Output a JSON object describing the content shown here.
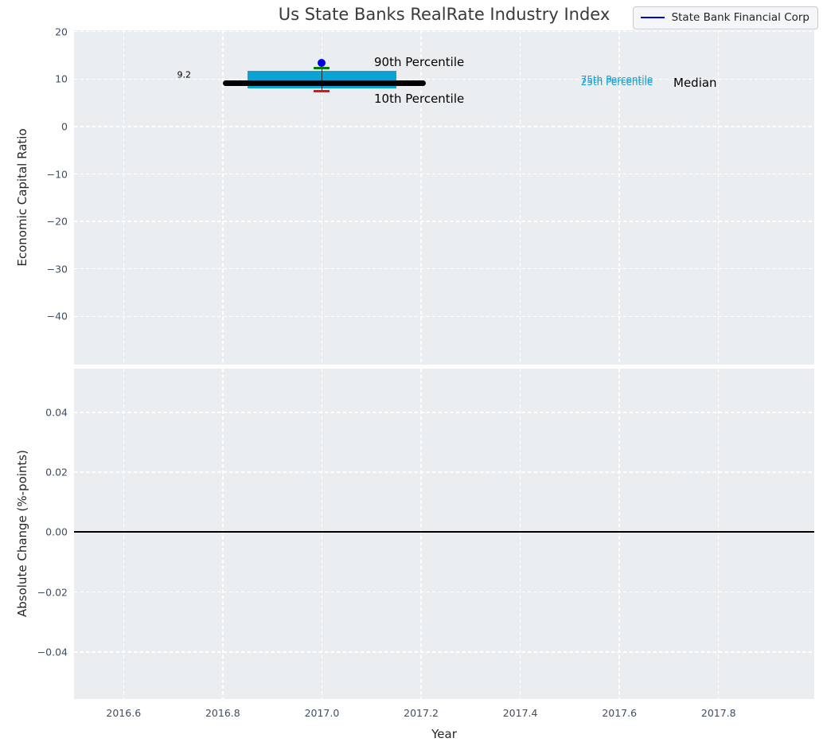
{
  "title": "Us State Banks RealRate Industry Index",
  "style": {
    "figure_background": "#ffffff",
    "axes_background": "#ebeef0",
    "grid_color": "#ffffff",
    "tick_label_color": "#3f4e63",
    "axis_label_color": "#262626",
    "title_color": "#3a3a3a"
  },
  "legend": {
    "label": "State Bank Financial Corp",
    "line_color": "#0000ee"
  },
  "chart_data": [
    {
      "type": "box-errorbar",
      "title": "Us State Banks RealRate Industry Index",
      "xlabel": "",
      "ylabel": "Economic Capital Ratio",
      "xlim": [
        2016.5,
        2017.993
      ],
      "ylim": [
        -50.2,
        20.3
      ],
      "grid": true,
      "legend_position": "upper right",
      "xticks": {
        "values": [
          2016.6,
          2016.8,
          2017.0,
          2017.2,
          2017.4,
          2017.6,
          2017.8
        ],
        "labels": []
      },
      "yticks": {
        "values": [
          20,
          10,
          0,
          -10,
          -20,
          -30,
          -40
        ],
        "labels": [
          "20",
          "10",
          "0",
          "−10",
          "−20",
          "−30",
          "−40"
        ]
      },
      "median": {
        "value": 9.2,
        "x_span": [
          2016.8,
          2017.21
        ],
        "color": "#000000"
      },
      "iqr_box": {
        "p25": 8.0,
        "p75": 11.7,
        "x_span": [
          2016.85,
          2017.15
        ],
        "color": "#0ba2d4"
      },
      "whiskers": {
        "x": 2017.0,
        "p90": 12.4,
        "p10": 7.5,
        "cap_half_width": 0.016,
        "p90_color": "#008000",
        "p10_color": "#ee1111",
        "stem_color": "#2b2b2b"
      },
      "company_point": {
        "name": "State Bank Financial Corp",
        "x": 2017.0,
        "y": 13.5,
        "color": "#0000ee"
      },
      "annotations": [
        {
          "id": "median-value",
          "text": "9.2",
          "x": 147,
          "y": 56,
          "size": 11,
          "color": "#000000",
          "align": "right"
        },
        {
          "id": "p90-label",
          "text": "90th Percentile",
          "x": 377,
          "y": 40,
          "size": 15,
          "color": "#000000",
          "align": "left"
        },
        {
          "id": "p10-label",
          "text": "10th Percentile",
          "x": 377,
          "y": 86,
          "size": 15,
          "color": "#000000",
          "align": "left"
        },
        {
          "id": "p75-label",
          "text": "75th Percentile",
          "x": 682,
          "y": 62,
          "size": 12,
          "color": "#0ba2d4",
          "align": "center"
        },
        {
          "id": "p25-label",
          "text": "25th Percentile",
          "x": 682,
          "y": 65,
          "size": 12,
          "color": "#0ba2d4",
          "align": "center"
        },
        {
          "id": "median-label",
          "text": "Median",
          "x": 753,
          "y": 66,
          "size": 15,
          "color": "#000000",
          "align": "left"
        }
      ]
    },
    {
      "type": "line",
      "title": "",
      "xlabel": "Year",
      "ylabel": "Absolute Change (%-points)",
      "xlim": [
        2016.5,
        2017.993
      ],
      "ylim": [
        -0.0557,
        0.0546
      ],
      "grid": true,
      "xticks": {
        "values": [
          2016.6,
          2016.8,
          2017.0,
          2017.2,
          2017.4,
          2017.6,
          2017.8
        ],
        "labels": [
          "2016.6",
          "2016.8",
          "2017.0",
          "2017.2",
          "2017.4",
          "2017.6",
          "2017.8"
        ]
      },
      "yticks": {
        "values": [
          0.04,
          0.02,
          0,
          -0.02,
          -0.04
        ],
        "labels": [
          "0.04",
          "0.02",
          "0.00",
          "−0.02",
          "−0.04"
        ]
      },
      "zero_line": {
        "y": 0.0,
        "color": "#000000"
      }
    }
  ]
}
